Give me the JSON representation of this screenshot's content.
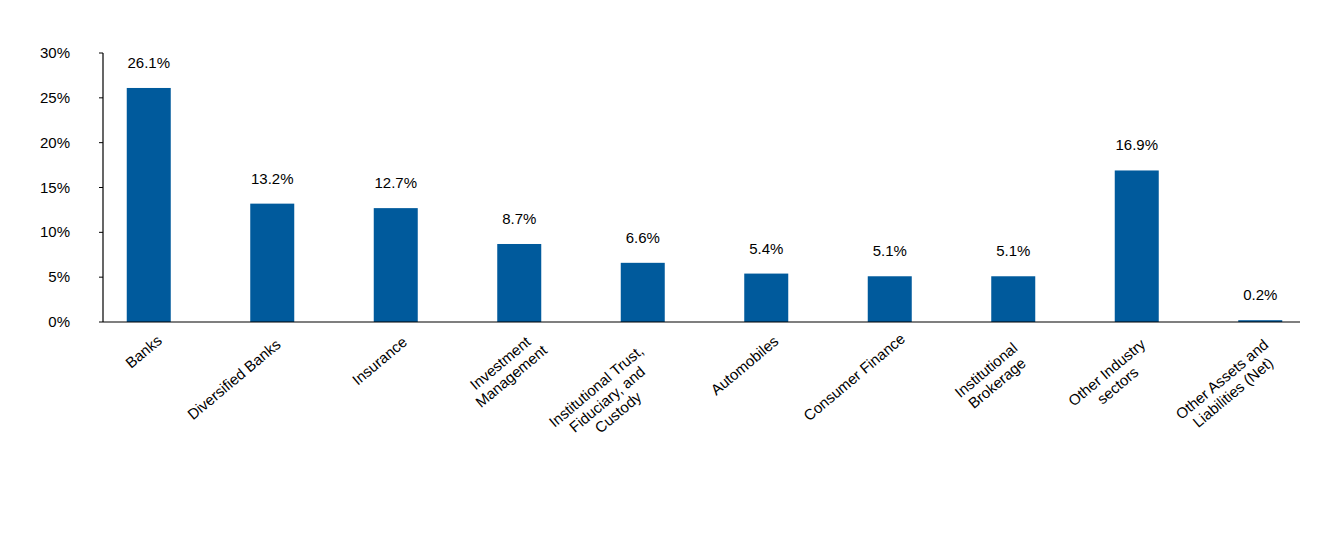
{
  "chart_data": {
    "type": "bar",
    "categories": [
      "Banks",
      "Diversified Banks",
      "Insurance",
      "Investment Management",
      "Institutional Trust, Fiduciary, and Custody",
      "Automobiles",
      "Consumer Finance",
      "Institutional Brokerage",
      "Other Industry sectors",
      "Other Assets and Liabilities (Net)"
    ],
    "values": [
      26.1,
      13.2,
      12.7,
      8.7,
      6.6,
      5.4,
      5.1,
      5.1,
      16.9,
      0.2
    ],
    "value_labels": [
      "26.1%",
      "13.2%",
      "12.7%",
      "8.7%",
      "6.6%",
      "5.4%",
      "5.1%",
      "5.1%",
      "16.9%",
      "0.2%"
    ],
    "color": "#005a9c",
    "ylim": [
      0,
      30
    ],
    "yticks": [
      {
        "value": 0,
        "label": "0%"
      },
      {
        "value": 5,
        "label": "5%"
      },
      {
        "value": 10,
        "label": "10%"
      },
      {
        "value": 15,
        "label": "15%"
      },
      {
        "value": 20,
        "label": "20%"
      },
      {
        "value": 25,
        "label": "25%"
      },
      {
        "value": 30,
        "label": "30%"
      }
    ],
    "grid": false,
    "data_labels": true
  }
}
